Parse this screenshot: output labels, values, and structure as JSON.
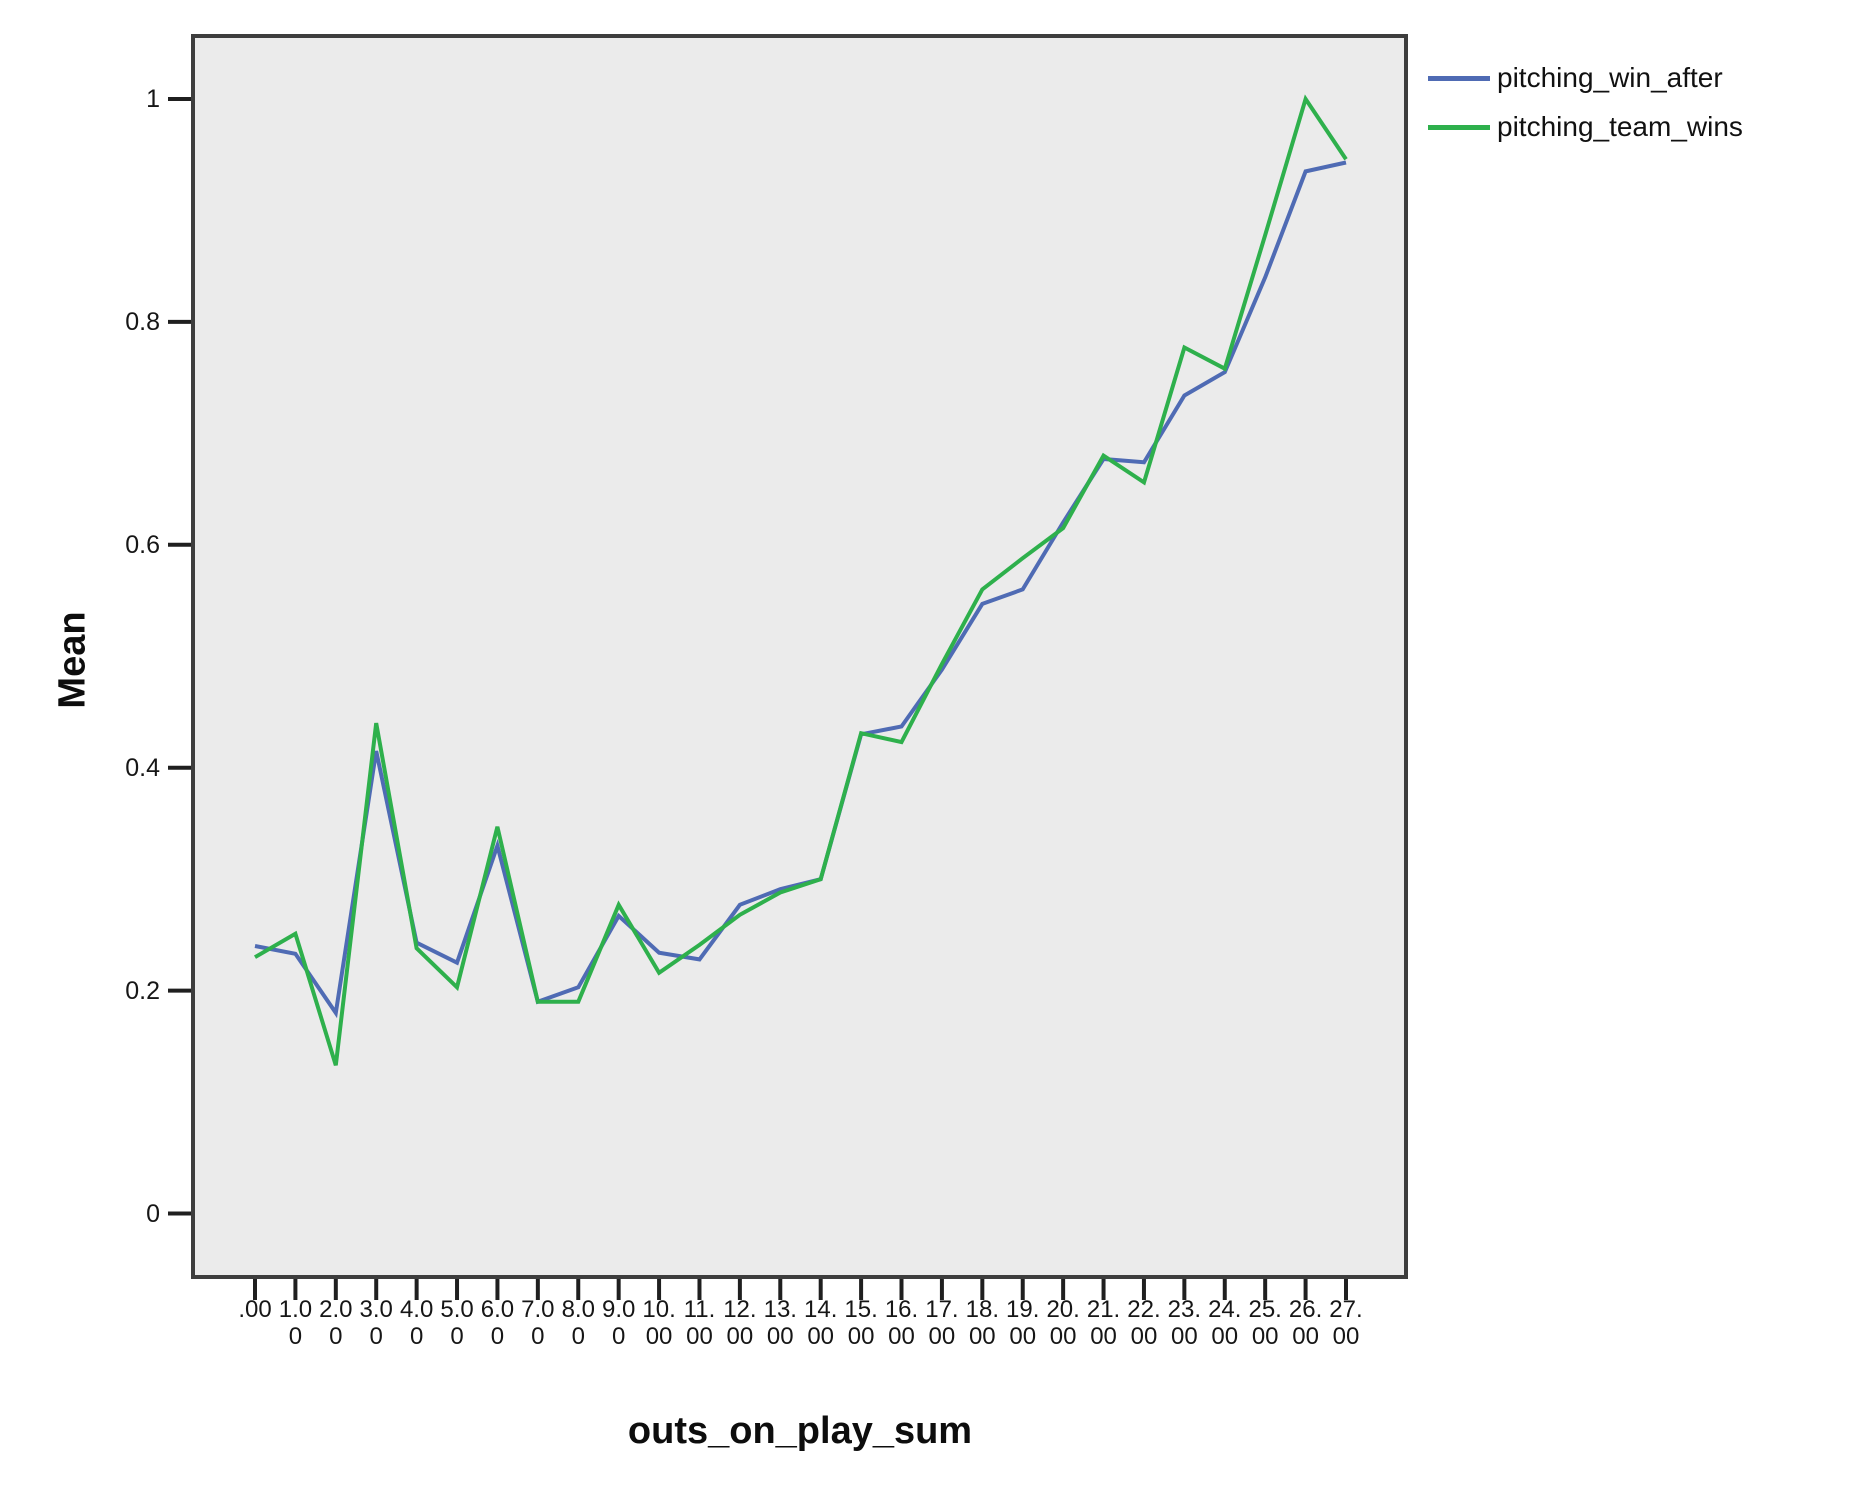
{
  "figure": {
    "background_color": "#ffffff",
    "plot_background_color": "#ebebeb",
    "frame_color": "#3d3d3d",
    "tick_color": "#1f1f1f",
    "text_color": "#161616"
  },
  "chart_data": {
    "type": "line",
    "title": "",
    "xlabel": "outs_on_play_sum",
    "ylabel": "Mean",
    "grid": false,
    "legend_position": "top-right-outside",
    "ylim": [
      -0.06,
      1.06
    ],
    "y_ticks": [
      0,
      0.2,
      0.4,
      0.6,
      0.8,
      1
    ],
    "y_tick_labels": [
      "0",
      "0.2",
      "0.4",
      "0.6",
      "0.8",
      "1"
    ],
    "categories": [
      ".00",
      "1.00",
      "2.00",
      "3.00",
      "4.00",
      "5.00",
      "6.00",
      "7.00",
      "8.00",
      "9.00",
      "10.00",
      "11.00",
      "12.00",
      "13.00",
      "14.00",
      "15.00",
      "16.00",
      "17.00",
      "18.00",
      "19.00",
      "20.00",
      "21.00",
      "22.00",
      "23.00",
      "24.00",
      "25.00",
      "26.00",
      "27.00"
    ],
    "series": [
      {
        "name": "pitching_win_after",
        "color": "#4f6bb4",
        "values": [
          0.24,
          0.233,
          0.18,
          0.415,
          0.243,
          0.225,
          0.33,
          0.19,
          0.203,
          0.267,
          0.234,
          0.228,
          0.277,
          0.291,
          0.3,
          0.43,
          0.437,
          0.488,
          0.547,
          0.56,
          0.62,
          0.677,
          0.674,
          0.734,
          0.755,
          0.84,
          0.935,
          0.943
        ]
      },
      {
        "name": "pitching_team_wins",
        "color": "#2eb04c",
        "values": [
          0.23,
          0.251,
          0.133,
          0.44,
          0.238,
          0.203,
          0.347,
          0.19,
          0.19,
          0.277,
          0.216,
          0.241,
          0.268,
          0.288,
          0.3,
          0.431,
          0.423,
          0.493,
          0.56,
          0.588,
          0.615,
          0.68,
          0.656,
          0.777,
          0.758,
          0.878,
          1.0,
          0.946
        ]
      }
    ]
  }
}
